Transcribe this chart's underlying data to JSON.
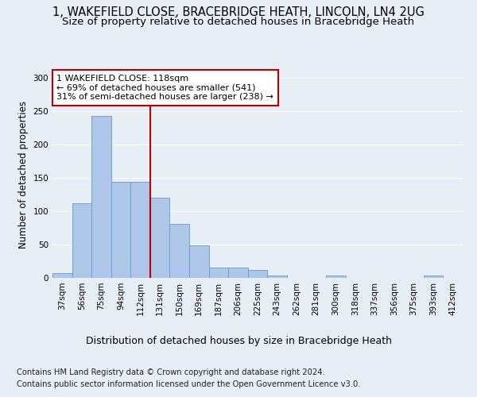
{
  "title1": "1, WAKEFIELD CLOSE, BRACEBRIDGE HEATH, LINCOLN, LN4 2UG",
  "title2": "Size of property relative to detached houses in Bracebridge Heath",
  "xlabel": "Distribution of detached houses by size in Bracebridge Heath",
  "ylabel": "Number of detached properties",
  "footnote1": "Contains HM Land Registry data © Crown copyright and database right 2024.",
  "footnote2": "Contains public sector information licensed under the Open Government Licence v3.0.",
  "categories": [
    "37sqm",
    "56sqm",
    "75sqm",
    "94sqm",
    "112sqm",
    "131sqm",
    "150sqm",
    "169sqm",
    "187sqm",
    "206sqm",
    "225sqm",
    "243sqm",
    "262sqm",
    "281sqm",
    "300sqm",
    "318sqm",
    "337sqm",
    "356sqm",
    "375sqm",
    "393sqm",
    "412sqm"
  ],
  "values": [
    7,
    112,
    243,
    144,
    144,
    120,
    81,
    49,
    16,
    15,
    12,
    4,
    0,
    0,
    3,
    0,
    0,
    0,
    0,
    3,
    0
  ],
  "bar_color": "#aec6e8",
  "bar_edge_color": "#5a9fd4",
  "highlight_index": 4,
  "highlight_color": "#c00000",
  "annotation_text": "1 WAKEFIELD CLOSE: 118sqm\n← 69% of detached houses are smaller (541)\n31% of semi-detached houses are larger (238) →",
  "annotation_box_color": "#ffffff",
  "annotation_box_edge": "#c00000",
  "ylim": [
    0,
    310
  ],
  "yticks": [
    0,
    50,
    100,
    150,
    200,
    250,
    300
  ],
  "bg_color": "#e8eef5",
  "grid_color": "#ffffff",
  "title1_fontsize": 10.5,
  "title2_fontsize": 9.5,
  "xlabel_fontsize": 9,
  "ylabel_fontsize": 8.5,
  "tick_fontsize": 7.5,
  "footnote_fontsize": 7.2,
  "ann_fontsize": 8
}
